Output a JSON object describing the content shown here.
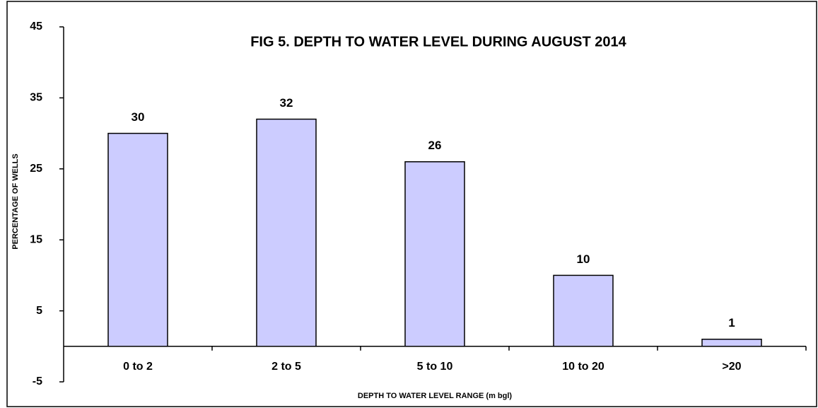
{
  "chart_data": {
    "type": "bar",
    "title": "FIG 5. DEPTH TO WATER LEVEL DURING AUGUST 2014",
    "x_label": "DEPTH TO WATER LEVEL RANGE (m bgl)",
    "y_label": "PERCENTAGE OF WELLS",
    "categories": [
      "0 to 2",
      "2 to 5",
      "5 to 10",
      "10 to 20",
      ">20"
    ],
    "values": [
      30,
      32,
      26,
      10,
      1
    ],
    "color": "#ccccff",
    "ylim": [
      -5,
      45
    ],
    "yticks": [
      -5,
      5,
      15,
      25,
      35,
      45
    ],
    "grid": false
  }
}
